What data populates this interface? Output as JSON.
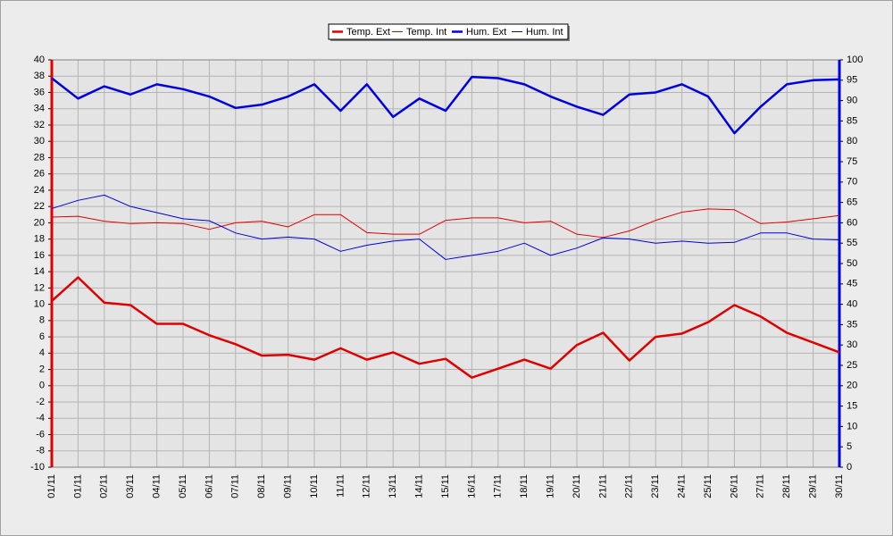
{
  "chart_data": {
    "type": "line",
    "categories": [
      "01/11",
      "01/11",
      "02/11",
      "03/11",
      "04/11",
      "05/11",
      "06/11",
      "07/11",
      "08/11",
      "09/11",
      "10/11",
      "11/11",
      "12/11",
      "13/11",
      "14/11",
      "15/11",
      "16/11",
      "17/11",
      "18/11",
      "19/11",
      "20/11",
      "21/11",
      "22/11",
      "23/11",
      "24/11",
      "25/11",
      "26/11",
      "27/11",
      "28/11",
      "29/11",
      "30/11"
    ],
    "series": [
      {
        "name": "Temp. Ext",
        "color": "#e00000",
        "width": "thick",
        "values": [
          10.4,
          13.3,
          10.2,
          9.9,
          7.6,
          7.6,
          6.2,
          5.1,
          3.7,
          3.8,
          3.2,
          4.6,
          3.2,
          4.1,
          2.7,
          3.3,
          1.0,
          2.1,
          3.2,
          2.1,
          5.0,
          6.5,
          3.1,
          6.0,
          6.4,
          7.8,
          9.9,
          8.5,
          6.5,
          5.3,
          4.1
        ]
      },
      {
        "name": "Temp. Int",
        "color": "#e00000",
        "width": "thin",
        "values": [
          20.7,
          20.8,
          20.2,
          19.9,
          20.0,
          19.9,
          19.2,
          20.0,
          20.2,
          19.5,
          21.0,
          21.0,
          18.8,
          18.6,
          18.6,
          20.3,
          20.6,
          20.6,
          20.0,
          20.2,
          18.6,
          18.2,
          19.0,
          20.3,
          21.3,
          21.7,
          21.6,
          19.9,
          20.1,
          20.5,
          20.9
        ]
      },
      {
        "name": "Hum. Ext",
        "color": "#0000e0",
        "width": "thick",
        "axis": "y2",
        "values": [
          95.5,
          90.5,
          93.5,
          91.5,
          94,
          92.8,
          91,
          88.2,
          89,
          91,
          94,
          87.5,
          94,
          86,
          90.5,
          87.5,
          95.8,
          95.5,
          94,
          91,
          88.5,
          86.5,
          91.5,
          92,
          94,
          91,
          82,
          88.5,
          94,
          95,
          95.2
        ]
      },
      {
        "name": "Hum. Int",
        "color": "#0000e0",
        "width": "thin",
        "axis": "y2",
        "values": [
          63.5,
          65.5,
          66.8,
          64,
          62.5,
          61,
          60.5,
          57.5,
          56,
          56.5,
          56,
          53,
          54.5,
          55.5,
          56,
          51,
          52,
          53,
          55,
          52,
          53.8,
          56.3,
          56,
          55,
          55.5,
          55,
          55.2,
          57.5,
          57.5,
          56,
          55.8
        ]
      }
    ],
    "ylim": [
      -10,
      40
    ],
    "yticks": [
      -10,
      -8,
      -6,
      -4,
      -2,
      0,
      2,
      4,
      6,
      8,
      10,
      12,
      14,
      16,
      18,
      20,
      22,
      24,
      26,
      28,
      30,
      32,
      34,
      36,
      38,
      40
    ],
    "y2lim": [
      0,
      100
    ],
    "y2ticks": [
      0,
      5,
      10,
      15,
      20,
      25,
      30,
      35,
      40,
      45,
      50,
      55,
      60,
      65,
      70,
      75,
      80,
      85,
      90,
      95,
      100
    ],
    "grid": true,
    "legend": "top"
  }
}
